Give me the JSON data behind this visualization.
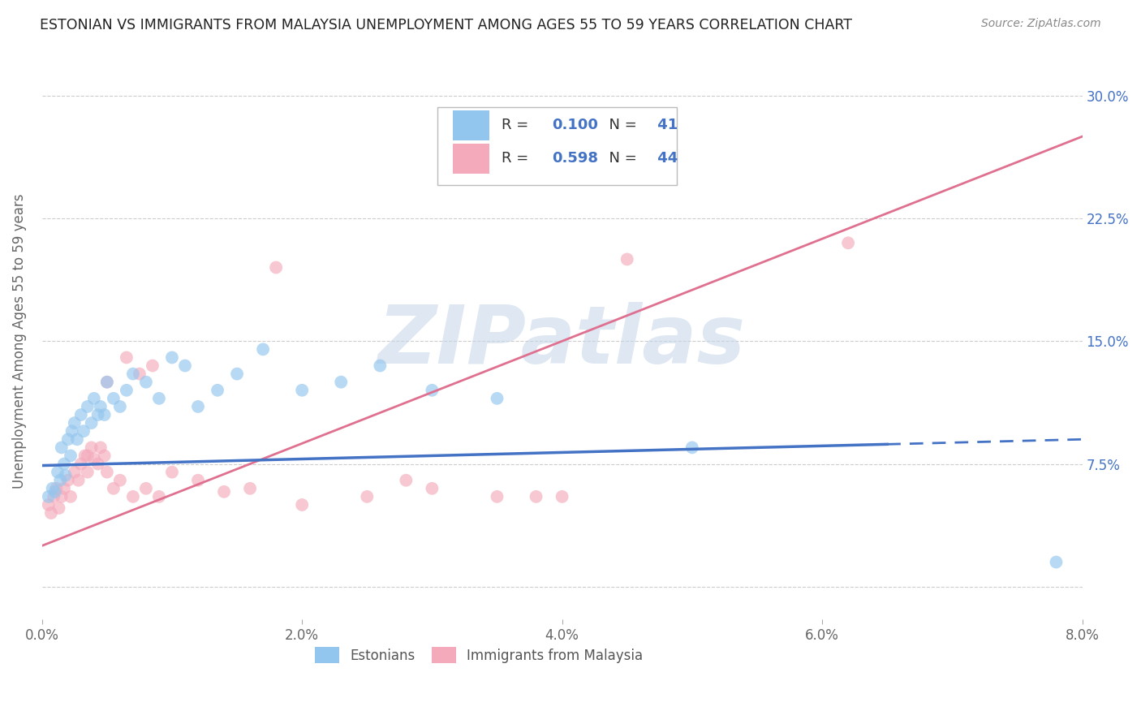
{
  "title": "ESTONIAN VS IMMIGRANTS FROM MALAYSIA UNEMPLOYMENT AMONG AGES 55 TO 59 YEARS CORRELATION CHART",
  "source": "Source: ZipAtlas.com",
  "ylabel": "Unemployment Among Ages 55 to 59 years",
  "xlim": [
    0.0,
    8.0
  ],
  "ylim": [
    -2.0,
    32.0
  ],
  "yticks": [
    0.0,
    7.5,
    15.0,
    22.5,
    30.0
  ],
  "xticks": [
    0.0,
    2.0,
    4.0,
    6.0,
    8.0
  ],
  "xtick_labels": [
    "0.0%",
    "2.0%",
    "4.0%",
    "6.0%",
    "8.0%"
  ],
  "ytick_labels": [
    "",
    "7.5%",
    "15.0%",
    "22.5%",
    "30.0%"
  ],
  "legend_R1": "0.100",
  "legend_N1": "41",
  "legend_R2": "0.598",
  "legend_N2": "44",
  "color_estonian": "#93C6EE",
  "color_immigrant": "#F4AABB",
  "color_line_estonian": "#4472C4",
  "color_line_immigrant": "#E07090",
  "watermark": "ZIPatlas",
  "watermark_color": "#C8D8EA",
  "est_line_x0": 0.0,
  "est_line_y0": 7.4,
  "est_line_x1": 8.0,
  "est_line_y1": 9.0,
  "imm_line_x0": 0.0,
  "imm_line_y0": 2.5,
  "imm_line_x1": 8.0,
  "imm_line_y1": 27.5,
  "estonian_x": [
    0.05,
    0.08,
    0.1,
    0.12,
    0.14,
    0.15,
    0.17,
    0.18,
    0.2,
    0.22,
    0.23,
    0.25,
    0.27,
    0.3,
    0.32,
    0.35,
    0.38,
    0.4,
    0.43,
    0.45,
    0.48,
    0.5,
    0.55,
    0.6,
    0.65,
    0.7,
    0.8,
    0.9,
    1.0,
    1.1,
    1.2,
    1.35,
    1.5,
    1.7,
    2.0,
    2.3,
    2.6,
    3.0,
    3.5,
    5.0,
    7.8
  ],
  "estonian_y": [
    5.5,
    6.0,
    5.8,
    7.0,
    6.5,
    8.5,
    7.5,
    6.8,
    9.0,
    8.0,
    9.5,
    10.0,
    9.0,
    10.5,
    9.5,
    11.0,
    10.0,
    11.5,
    10.5,
    11.0,
    10.5,
    12.5,
    11.5,
    11.0,
    12.0,
    13.0,
    12.5,
    11.5,
    14.0,
    13.5,
    11.0,
    12.0,
    13.0,
    14.5,
    12.0,
    12.5,
    13.5,
    12.0,
    11.5,
    8.5,
    1.5
  ],
  "immigrant_x": [
    0.05,
    0.07,
    0.09,
    0.11,
    0.13,
    0.15,
    0.17,
    0.2,
    0.22,
    0.25,
    0.28,
    0.3,
    0.33,
    0.35,
    0.38,
    0.4,
    0.43,
    0.45,
    0.48,
    0.5,
    0.55,
    0.6,
    0.7,
    0.8,
    0.9,
    1.0,
    1.2,
    1.4,
    1.6,
    2.0,
    2.5,
    3.0,
    3.5,
    4.0,
    2.8,
    3.8,
    0.65,
    0.75,
    0.85,
    1.8,
    4.5,
    6.2,
    0.35,
    0.5
  ],
  "immigrant_y": [
    5.0,
    4.5,
    5.5,
    6.0,
    4.8,
    5.5,
    6.0,
    6.5,
    5.5,
    7.0,
    6.5,
    7.5,
    8.0,
    7.0,
    8.5,
    7.8,
    7.5,
    8.5,
    8.0,
    7.0,
    6.0,
    6.5,
    5.5,
    6.0,
    5.5,
    7.0,
    6.5,
    5.8,
    6.0,
    5.0,
    5.5,
    6.0,
    5.5,
    5.5,
    6.5,
    5.5,
    14.0,
    13.0,
    13.5,
    19.5,
    20.0,
    21.0,
    8.0,
    12.5
  ]
}
